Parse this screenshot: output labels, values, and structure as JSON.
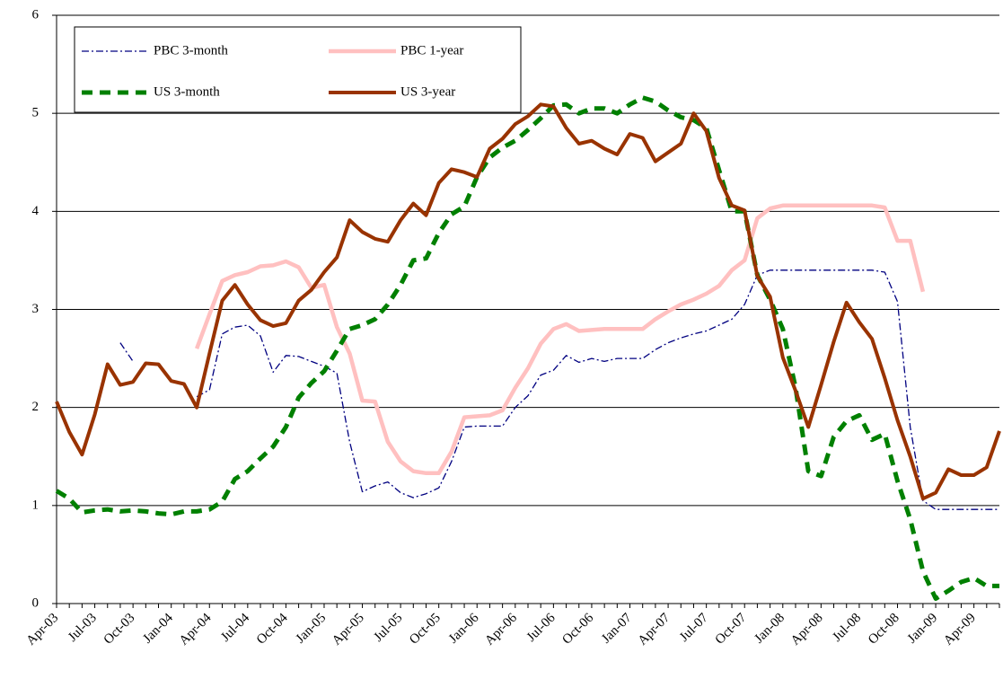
{
  "chart_data": {
    "type": "line",
    "categories": [
      "Apr-03",
      null,
      null,
      "Jul-03",
      null,
      null,
      "Oct-03",
      null,
      null,
      "Jan-04",
      null,
      null,
      "Apr-04",
      null,
      null,
      "Jul-04",
      null,
      null,
      "Oct-04",
      null,
      null,
      "Jan-05",
      null,
      null,
      "Apr-05",
      null,
      null,
      "Jul-05",
      null,
      null,
      "Oct-05",
      null,
      null,
      "Jan-06",
      null,
      null,
      "Apr-06",
      null,
      null,
      "Jul-06",
      null,
      null,
      "Oct-06",
      null,
      null,
      "Jan-07",
      null,
      null,
      "Apr-07",
      null,
      null,
      "Jul-07",
      null,
      null,
      "Oct-07",
      null,
      null,
      "Jan-08",
      null,
      null,
      "Apr-08",
      null,
      null,
      "Jul-08",
      null,
      null,
      "Oct-08",
      null,
      null,
      "Jan-09",
      null,
      null,
      "Apr-09",
      null,
      null
    ],
    "ylim": [
      0,
      6
    ],
    "yticks": [
      0,
      1,
      2,
      3,
      4,
      5,
      6
    ],
    "grid": true,
    "legend": "upper left",
    "series": [
      {
        "name": "PBC 3-month",
        "color": "#000080",
        "width": 1.3,
        "dash": "dash-dot",
        "values": [
          null,
          null,
          null,
          null,
          null,
          2.66,
          2.47,
          null,
          null,
          null,
          null,
          2.11,
          2.18,
          2.75,
          2.82,
          2.84,
          2.73,
          2.36,
          2.53,
          2.52,
          2.47,
          2.42,
          2.35,
          1.65,
          1.14,
          1.2,
          1.24,
          1.13,
          1.08,
          1.12,
          1.18,
          1.45,
          1.8,
          1.81,
          1.81,
          1.81,
          2.0,
          2.12,
          2.33,
          2.38,
          2.53,
          2.46,
          2.5,
          2.47,
          2.5,
          2.5,
          2.5,
          2.59,
          2.66,
          2.71,
          2.75,
          2.78,
          2.84,
          2.9,
          3.05,
          3.35,
          3.4,
          3.4,
          3.4,
          3.4,
          3.4,
          3.4,
          3.4,
          3.4,
          3.4,
          3.38,
          3.08,
          1.8,
          1.05,
          0.96,
          0.96,
          0.96,
          0.96,
          0.96,
          0.96
        ]
      },
      {
        "name": "PBC 1-year",
        "color": "#ffc0c0",
        "width": 4.5,
        "dash": "solid",
        "values": [
          null,
          null,
          null,
          null,
          null,
          null,
          null,
          null,
          null,
          null,
          null,
          2.6,
          2.95,
          3.29,
          3.35,
          3.38,
          3.44,
          3.45,
          3.49,
          3.43,
          3.22,
          3.25,
          2.82,
          2.55,
          2.07,
          2.06,
          1.65,
          1.45,
          1.35,
          1.33,
          1.33,
          1.55,
          1.9,
          1.91,
          1.92,
          1.97,
          2.2,
          2.4,
          2.65,
          2.8,
          2.85,
          2.78,
          2.79,
          2.8,
          2.8,
          2.8,
          2.8,
          2.9,
          2.98,
          3.05,
          3.1,
          3.16,
          3.24,
          3.4,
          3.5,
          3.93,
          4.03,
          4.06,
          4.06,
          4.06,
          4.06,
          4.06,
          4.06,
          4.06,
          4.06,
          4.04,
          3.7,
          3.7,
          3.18,
          null,
          null,
          null,
          null,
          null,
          null
        ]
      },
      {
        "name": "US 3-month",
        "color": "#008000",
        "width": 5,
        "dash": "dash",
        "values": [
          1.15,
          1.07,
          0.93,
          0.95,
          0.96,
          0.94,
          0.95,
          0.94,
          0.92,
          0.91,
          0.94,
          0.94,
          0.96,
          1.04,
          1.27,
          1.35,
          1.48,
          1.6,
          1.8,
          2.1,
          2.25,
          2.37,
          2.58,
          2.8,
          2.84,
          2.9,
          3.05,
          3.25,
          3.5,
          3.52,
          3.78,
          3.97,
          4.05,
          4.35,
          4.55,
          4.65,
          4.72,
          4.83,
          4.95,
          5.08,
          5.09,
          5.0,
          5.05,
          5.05,
          5.0,
          5.09,
          5.16,
          5.12,
          5.03,
          4.96,
          4.93,
          4.85,
          4.42,
          4.0,
          4.0,
          3.35,
          3.1,
          2.8,
          2.2,
          1.35,
          1.3,
          1.7,
          1.86,
          1.92,
          1.67,
          1.73,
          1.25,
          0.86,
          0.33,
          0.05,
          0.13,
          0.22,
          0.26,
          0.18,
          0.18
        ]
      },
      {
        "name": "US 3-year",
        "color": "#993300",
        "width": 4,
        "dash": "solid",
        "values": [
          2.06,
          1.75,
          1.52,
          1.93,
          2.44,
          2.23,
          2.26,
          2.45,
          2.44,
          2.27,
          2.24,
          2.0,
          2.55,
          3.09,
          3.25,
          3.05,
          2.89,
          2.83,
          2.86,
          3.09,
          3.2,
          3.38,
          3.53,
          3.91,
          3.79,
          3.72,
          3.69,
          3.91,
          4.08,
          3.96,
          4.29,
          4.43,
          4.4,
          4.35,
          4.64,
          4.74,
          4.89,
          4.97,
          5.09,
          5.07,
          4.85,
          4.69,
          4.72,
          4.64,
          4.58,
          4.79,
          4.75,
          4.51,
          4.6,
          4.69,
          5.0,
          4.82,
          4.34,
          4.06,
          4.01,
          3.34,
          3.13,
          2.51,
          2.17,
          1.8,
          2.23,
          2.67,
          3.07,
          2.87,
          2.7,
          2.3,
          1.87,
          1.5,
          1.07,
          1.13,
          1.37,
          1.31,
          1.31,
          1.39,
          1.76
        ]
      }
    ]
  }
}
